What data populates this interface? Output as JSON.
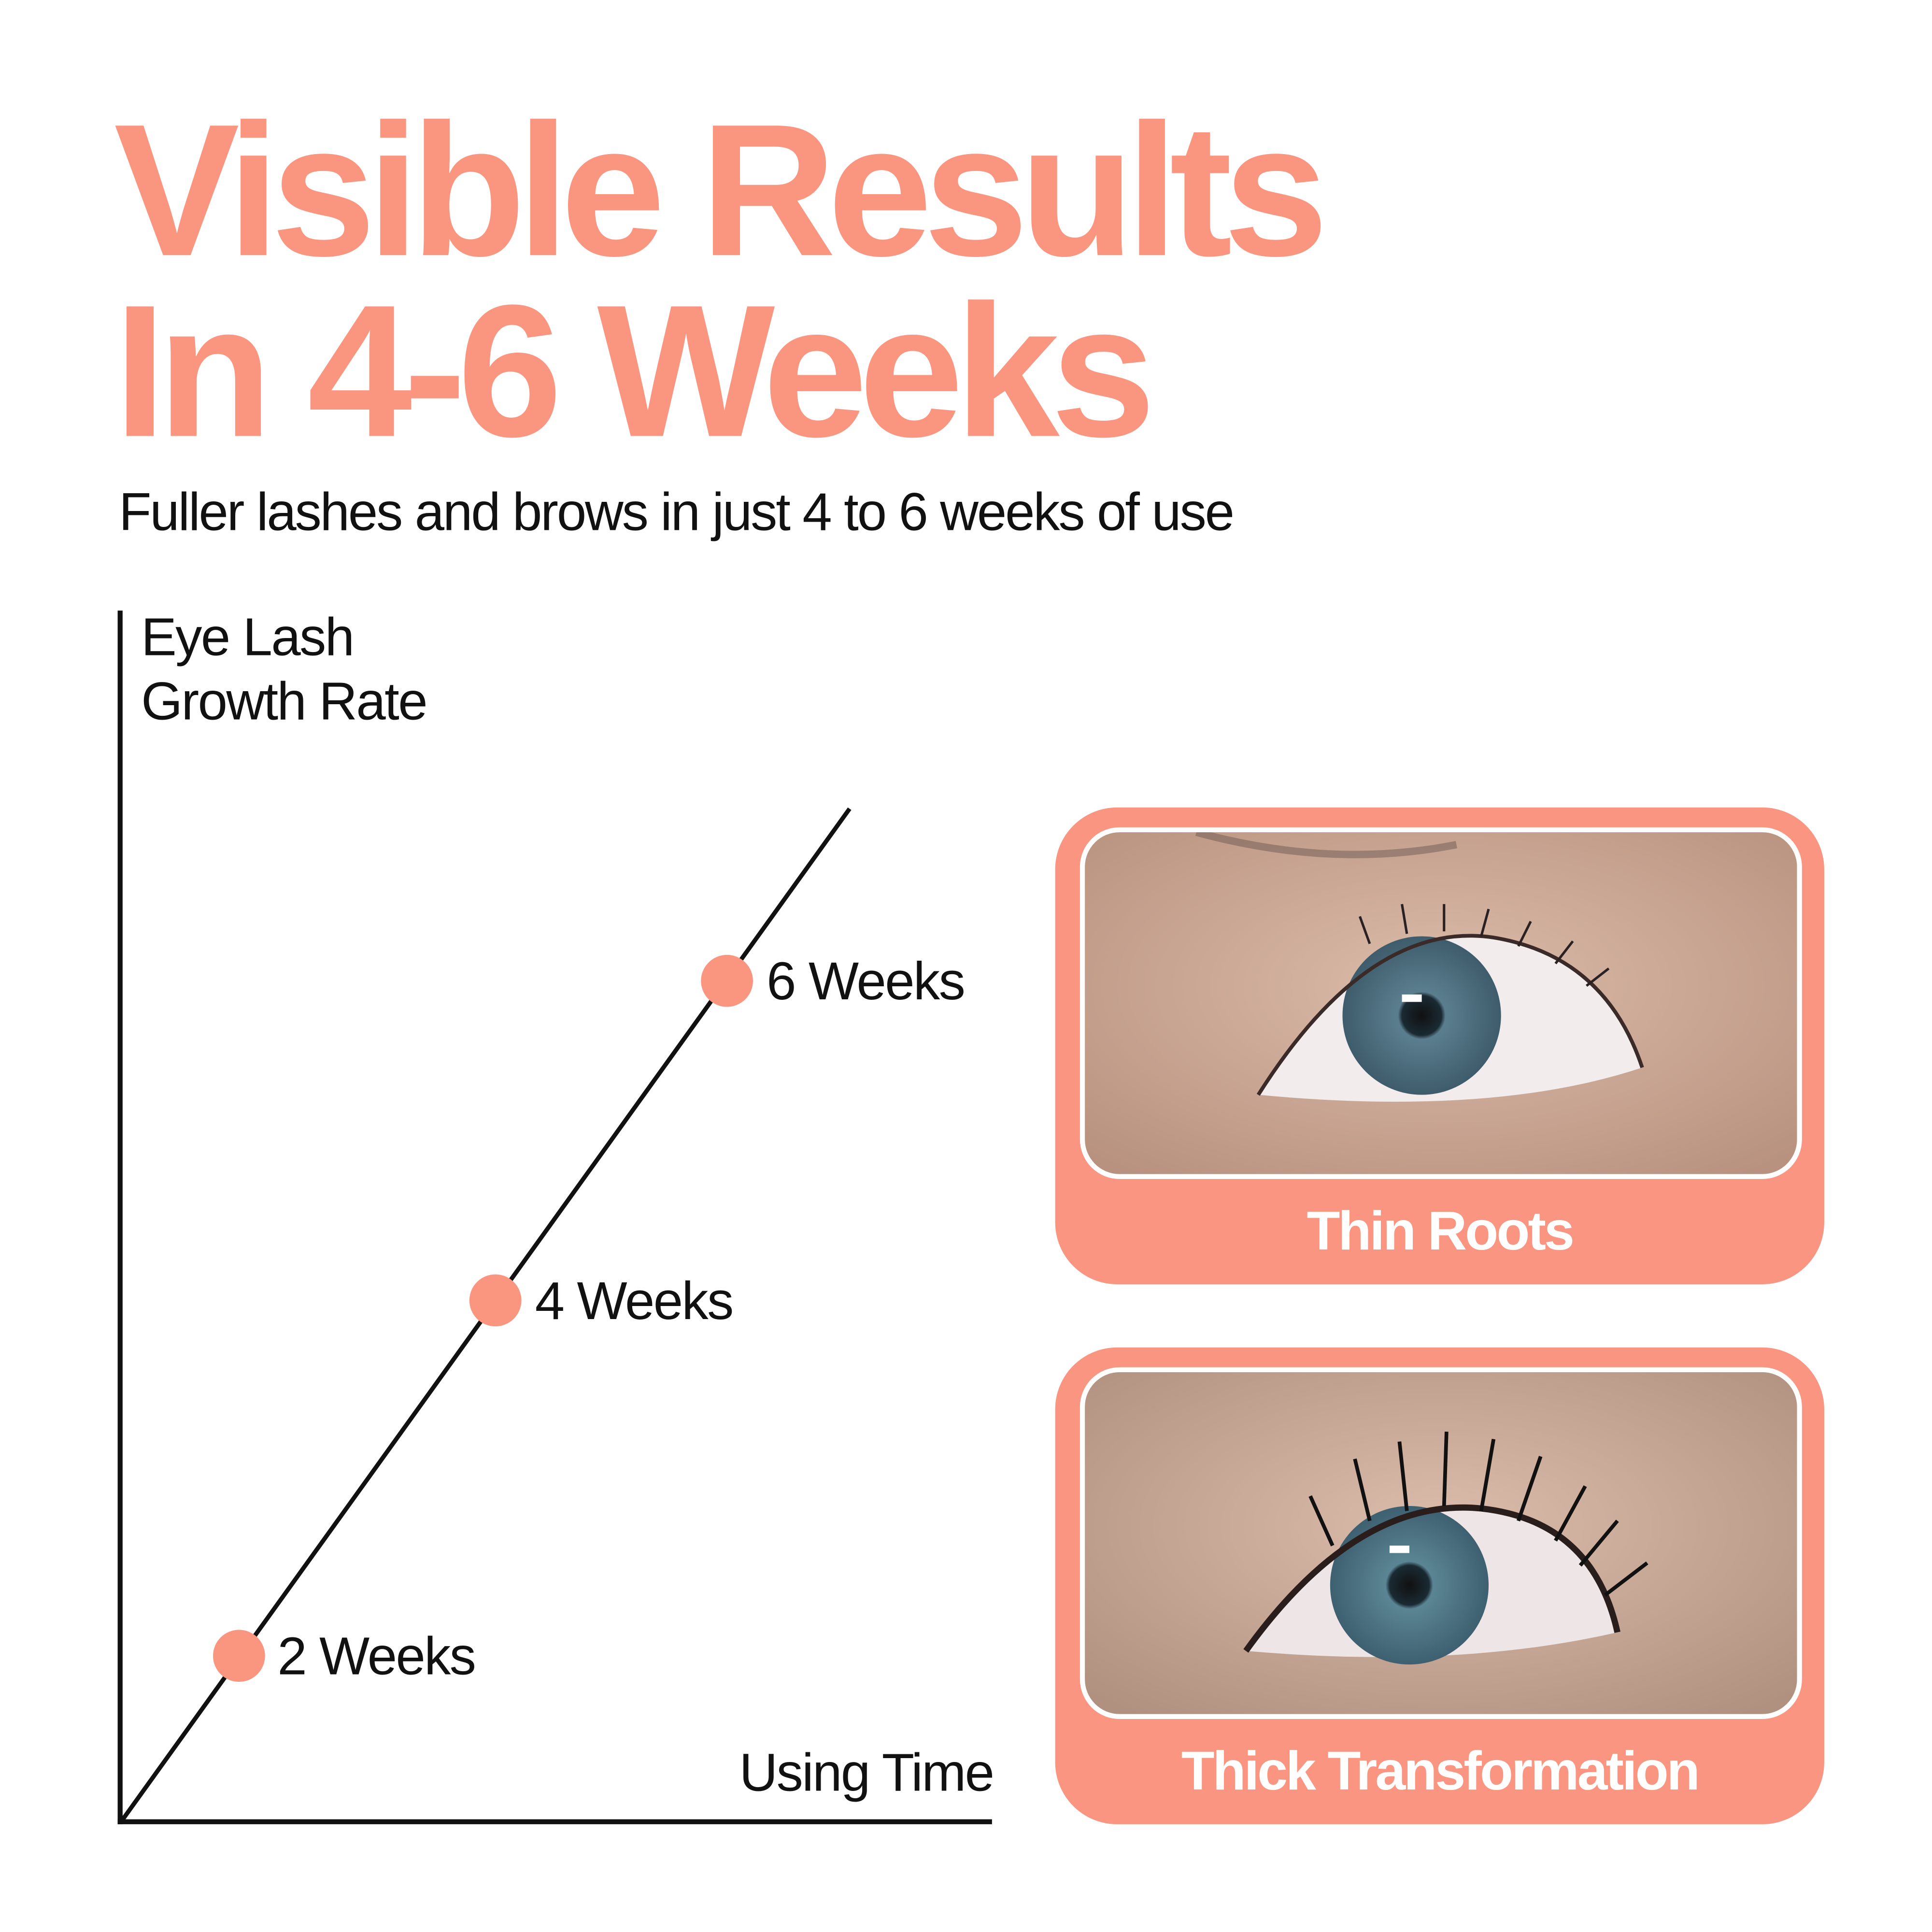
{
  "header": {
    "title_line1": "Visible Results",
    "title_line2": "In 4-6 Weeks",
    "subtitle": "Fuller lashes and brows in just 4 to 6 weeks of use"
  },
  "chart_data": {
    "type": "line",
    "ylabel_line1": "Eye Lash",
    "ylabel_line2": "Growth Rate",
    "xlabel": "Using Time",
    "points": [
      {
        "label": "2 Weeks",
        "x": 2
      },
      {
        "label": "4 Weeks",
        "x": 4
      },
      {
        "label": "6 Weeks",
        "x": 6
      }
    ],
    "grid": false,
    "marker_color": "#FA9580",
    "line_color": "#111111"
  },
  "cards": [
    {
      "caption": "Thin Roots",
      "image": "eye-thin-lashes-photo"
    },
    {
      "caption": "Thick Transformation",
      "image": "eye-thick-lashes-photo"
    }
  ],
  "colors": {
    "accent": "#FA9580",
    "text": "#111111",
    "background": "#FFFFFF"
  }
}
